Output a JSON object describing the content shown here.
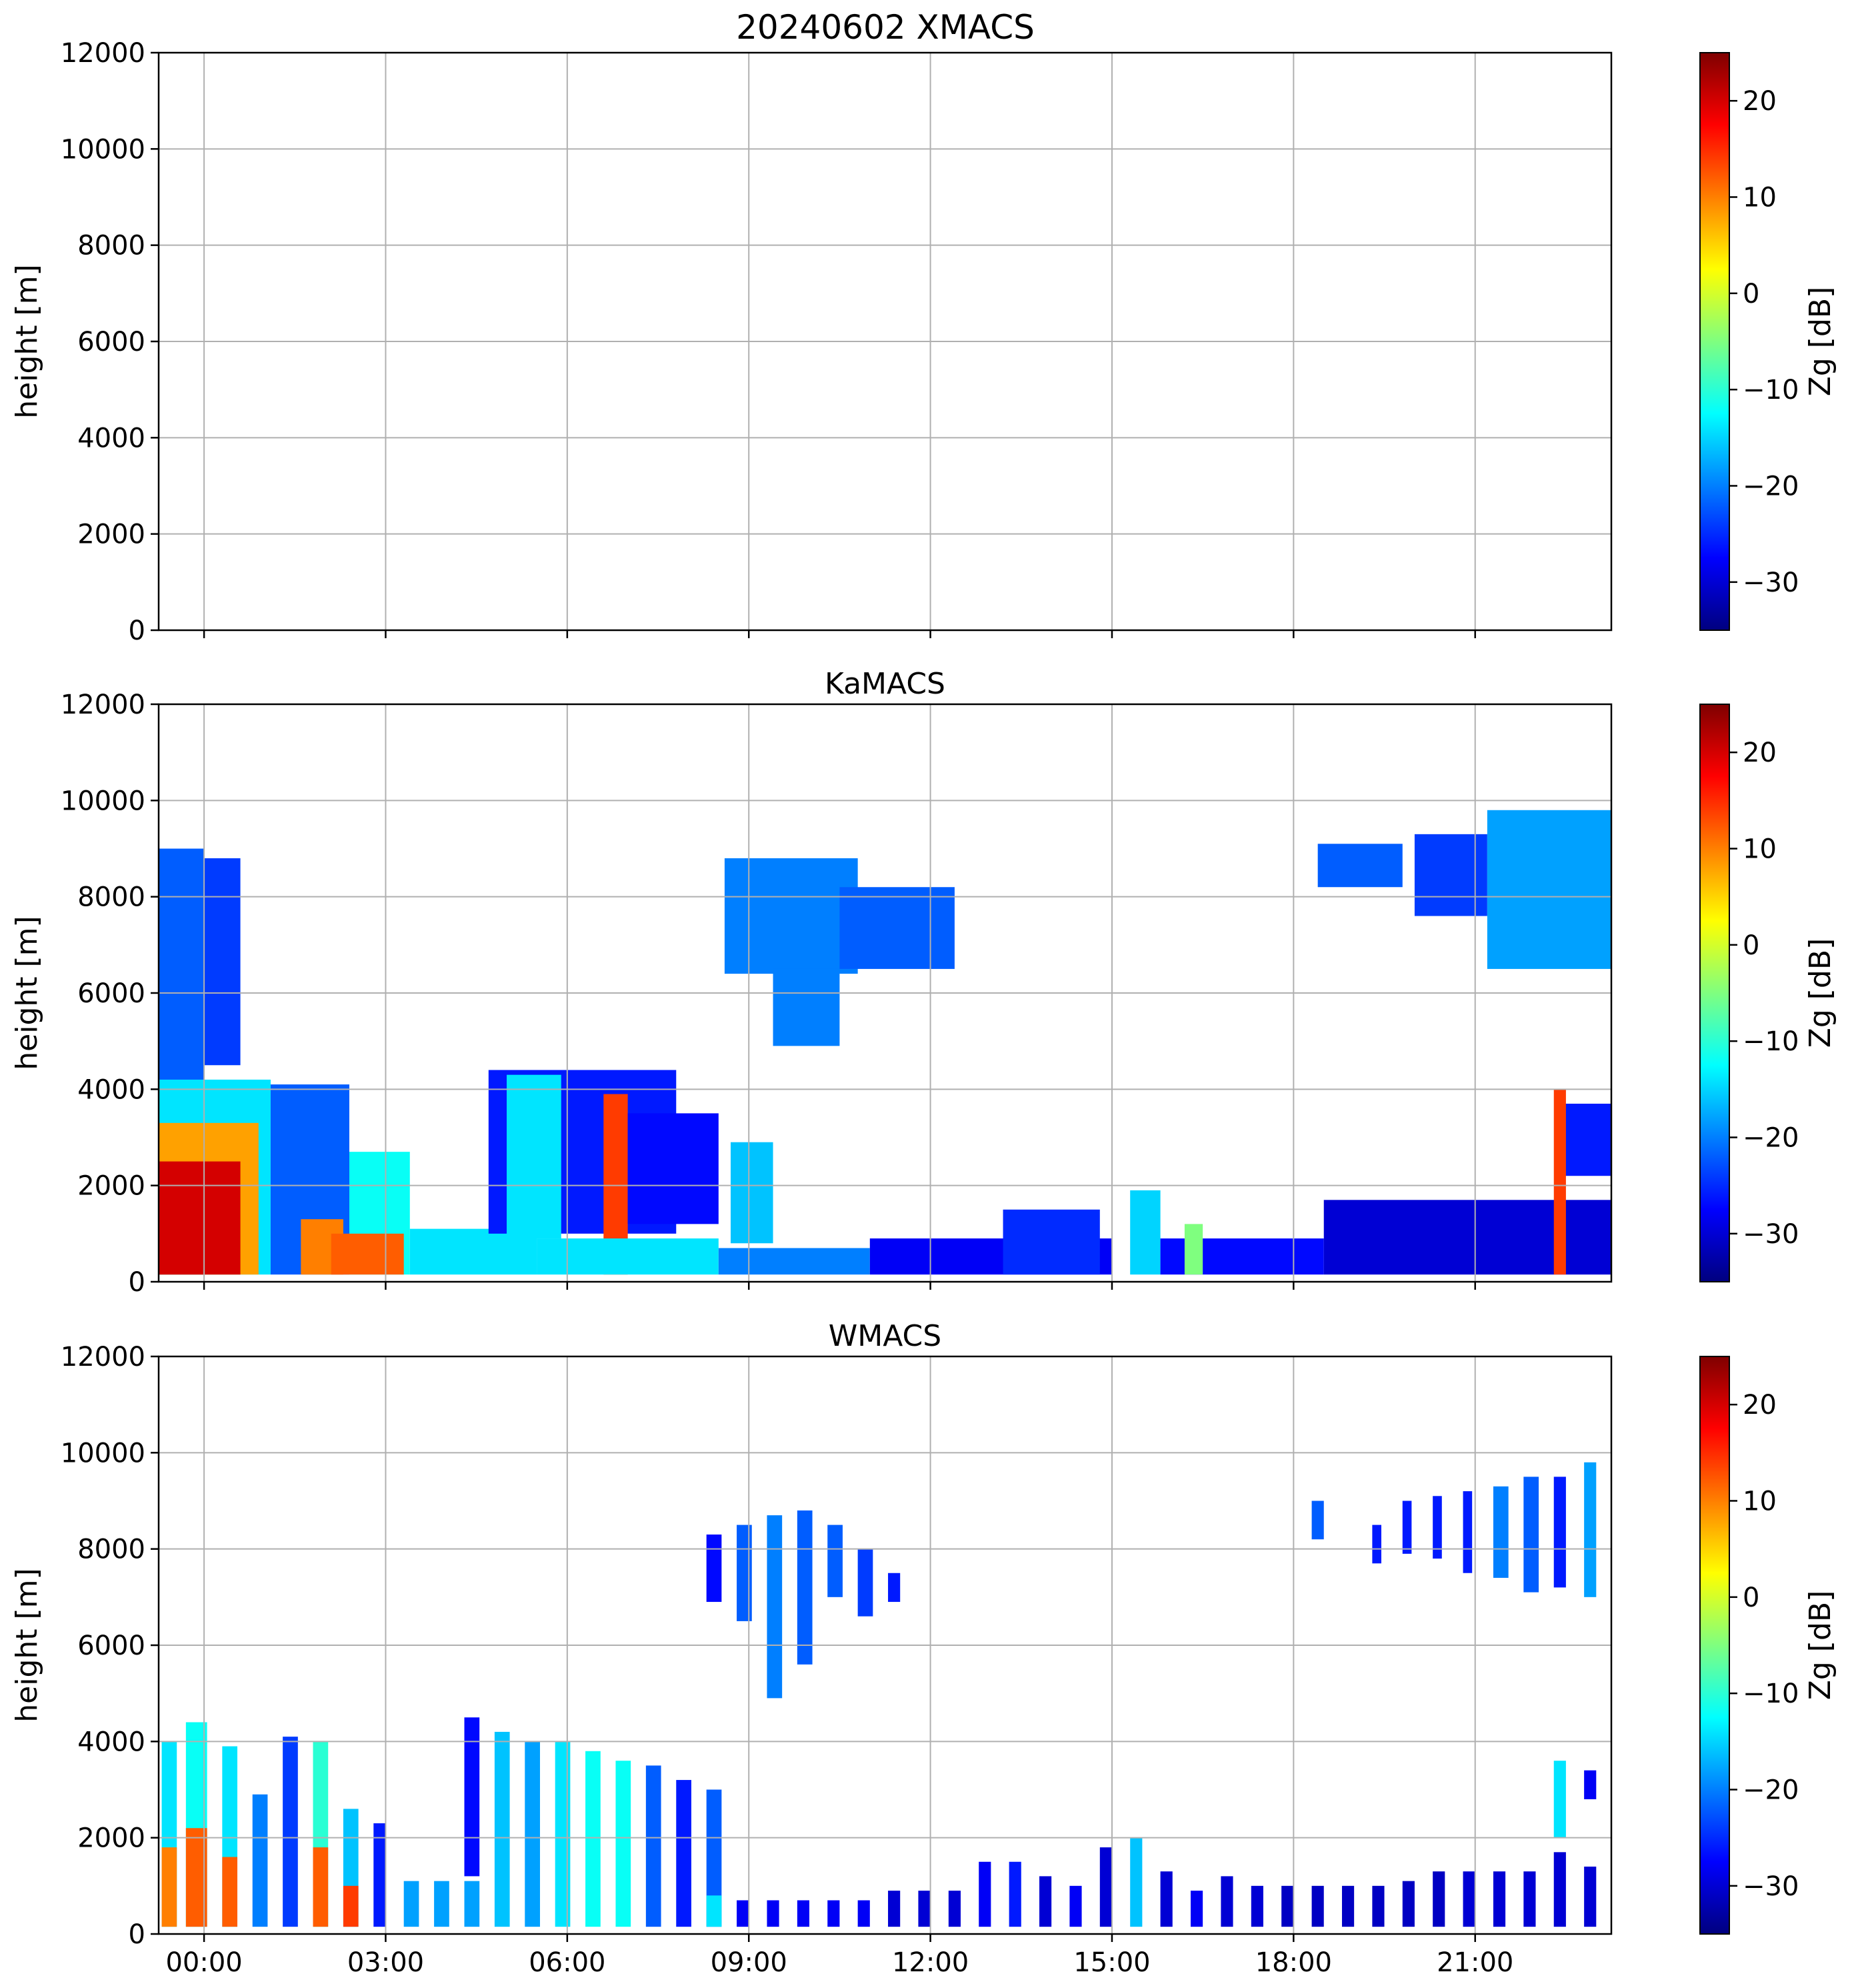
{
  "figure": {
    "title": "20240602 XMACS"
  },
  "colormap": {
    "name": "jet",
    "stops": [
      "#00007f",
      "#0000ff",
      "#007fff",
      "#00ffff",
      "#7fff7f",
      "#ffff00",
      "#ff7f00",
      "#ff0000",
      "#7f0000"
    ]
  },
  "chart_data": [
    {
      "type": "heatmap",
      "title": "",
      "instrument": "XMACS",
      "xlabel": "",
      "ylabel": "height [m]",
      "xlim": [
        -0.75,
        23.25
      ],
      "ylim": [
        0,
        12000
      ],
      "xtick_values": [
        0,
        3,
        6,
        9,
        12,
        15,
        18,
        21
      ],
      "xtick_labels": [
        "00:00",
        "03:00",
        "06:00",
        "09:00",
        "12:00",
        "15:00",
        "18:00",
        "21:00"
      ],
      "ytick_values": [
        0,
        2000,
        4000,
        6000,
        8000,
        10000,
        12000
      ],
      "ytick_labels": [
        "0",
        "2000",
        "4000",
        "6000",
        "8000",
        "10000",
        "12000"
      ],
      "show_xtick_labels": false,
      "grid": true,
      "colorbar": {
        "label": "Zg [dB]",
        "range": [
          -35,
          25
        ],
        "ticks": [
          -30,
          -20,
          -10,
          0,
          10,
          20
        ],
        "tick_labels": [
          "−30",
          "−20",
          "−10",
          "0",
          "10",
          "20"
        ]
      },
      "regions": []
    },
    {
      "type": "heatmap",
      "title": "KaMACS",
      "instrument": "KaMACS",
      "xlabel": "",
      "ylabel": "height [m]",
      "xlim": [
        -0.75,
        23.25
      ],
      "ylim": [
        0,
        12000
      ],
      "xtick_values": [
        0,
        3,
        6,
        9,
        12,
        15,
        18,
        21
      ],
      "xtick_labels": [
        "00:00",
        "03:00",
        "06:00",
        "09:00",
        "12:00",
        "15:00",
        "18:00",
        "21:00"
      ],
      "ytick_values": [
        0,
        2000,
        4000,
        6000,
        8000,
        10000,
        12000
      ],
      "ytick_labels": [
        "0",
        "2000",
        "4000",
        "6000",
        "8000",
        "10000",
        "12000"
      ],
      "show_xtick_labels": false,
      "grid": true,
      "colorbar": {
        "label": "Zg [dB]",
        "range": [
          -35,
          25
        ],
        "ticks": [
          -30,
          -20,
          -10,
          0,
          10,
          20
        ],
        "tick_labels": [
          "−30",
          "−20",
          "−10",
          "0",
          "10",
          "20"
        ]
      },
      "regions": [
        {
          "t0": -0.75,
          "t1": 0.0,
          "h0": 150,
          "h1": 9000,
          "z": -22
        },
        {
          "t0": 0.0,
          "t1": 0.6,
          "h0": 4500,
          "h1": 8800,
          "z": -24
        },
        {
          "t0": -0.75,
          "t1": 1.1,
          "h0": 150,
          "h1": 4200,
          "z": -14
        },
        {
          "t0": -0.75,
          "t1": 0.9,
          "h0": 150,
          "h1": 3300,
          "z": 8
        },
        {
          "t0": -0.75,
          "t1": 0.6,
          "h0": 150,
          "h1": 2500,
          "z": 20
        },
        {
          "t0": 1.1,
          "t1": 2.4,
          "h0": 150,
          "h1": 4100,
          "z": -22
        },
        {
          "t0": 1.6,
          "t1": 2.3,
          "h0": 150,
          "h1": 1300,
          "z": 10
        },
        {
          "t0": 2.4,
          "t1": 3.4,
          "h0": 150,
          "h1": 2700,
          "z": -12
        },
        {
          "t0": 2.1,
          "t1": 3.3,
          "h0": 150,
          "h1": 1000,
          "z": 12
        },
        {
          "t0": 3.4,
          "t1": 5.5,
          "h0": 150,
          "h1": 1100,
          "z": -14
        },
        {
          "t0": 4.7,
          "t1": 7.8,
          "h0": 1000,
          "h1": 4400,
          "z": -26
        },
        {
          "t0": 5.0,
          "t1": 5.9,
          "h0": 900,
          "h1": 4300,
          "z": -14
        },
        {
          "t0": 6.6,
          "t1": 7.0,
          "h0": 150,
          "h1": 3900,
          "z": 14
        },
        {
          "t0": 5.5,
          "t1": 8.5,
          "h0": 150,
          "h1": 900,
          "z": -14
        },
        {
          "t0": 7.0,
          "t1": 8.5,
          "h0": 1200,
          "h1": 3500,
          "z": -27
        },
        {
          "t0": 8.7,
          "t1": 9.4,
          "h0": 800,
          "h1": 2900,
          "z": -16
        },
        {
          "t0": 8.5,
          "t1": 11.0,
          "h0": 150,
          "h1": 700,
          "z": -20
        },
        {
          "t0": 8.6,
          "t1": 10.8,
          "h0": 6400,
          "h1": 8800,
          "z": -20
        },
        {
          "t0": 9.4,
          "t1": 10.5,
          "h0": 4900,
          "h1": 6500,
          "z": -20
        },
        {
          "t0": 10.5,
          "t1": 12.4,
          "h0": 6500,
          "h1": 8200,
          "z": -22
        },
        {
          "t0": 11.0,
          "t1": 15.0,
          "h0": 150,
          "h1": 900,
          "z": -28
        },
        {
          "t0": 13.2,
          "t1": 14.8,
          "h0": 150,
          "h1": 1500,
          "z": -25
        },
        {
          "t0": 15.3,
          "t1": 15.8,
          "h0": 150,
          "h1": 1900,
          "z": -15
        },
        {
          "t0": 15.8,
          "t1": 18.5,
          "h0": 150,
          "h1": 900,
          "z": -27
        },
        {
          "t0": 16.2,
          "t1": 16.5,
          "h0": 150,
          "h1": 1200,
          "z": -5
        },
        {
          "t0": 18.5,
          "t1": 23.25,
          "h0": 150,
          "h1": 1700,
          "z": -30
        },
        {
          "t0": 18.4,
          "t1": 19.8,
          "h0": 8200,
          "h1": 9100,
          "z": -22
        },
        {
          "t0": 20.0,
          "t1": 21.2,
          "h0": 7600,
          "h1": 9300,
          "z": -24
        },
        {
          "t0": 21.2,
          "t1": 23.25,
          "h0": 6500,
          "h1": 9800,
          "z": -18
        },
        {
          "t0": 22.4,
          "t1": 23.25,
          "h0": 2200,
          "h1": 3700,
          "z": -26
        },
        {
          "t0": 22.3,
          "t1": 22.5,
          "h0": 150,
          "h1": 4000,
          "z": 14
        }
      ]
    },
    {
      "type": "heatmap",
      "title": "WMACS",
      "instrument": "WMACS",
      "xlabel": "",
      "ylabel": "height [m]",
      "xlim": [
        -0.75,
        23.25
      ],
      "ylim": [
        0,
        12000
      ],
      "xtick_values": [
        0,
        3,
        6,
        9,
        12,
        15,
        18,
        21
      ],
      "xtick_labels": [
        "00:00",
        "03:00",
        "06:00",
        "09:00",
        "12:00",
        "15:00",
        "18:00",
        "21:00"
      ],
      "ytick_values": [
        0,
        2000,
        4000,
        6000,
        8000,
        10000,
        12000
      ],
      "ytick_labels": [
        "0",
        "2000",
        "4000",
        "6000",
        "8000",
        "10000",
        "12000"
      ],
      "show_xtick_labels": true,
      "grid": true,
      "colorbar": {
        "label": "Zg [dB]",
        "range": [
          -35,
          25
        ],
        "ticks": [
          -30,
          -20,
          -10,
          0,
          10,
          20
        ],
        "tick_labels": [
          "−30",
          "−20",
          "−10",
          "0",
          "10",
          "20"
        ]
      },
      "regions": [
        {
          "t0": -0.7,
          "t1": -0.45,
          "h0": 150,
          "h1": 4000,
          "z": -14
        },
        {
          "t0": -0.7,
          "t1": -0.45,
          "h0": 150,
          "h1": 1800,
          "z": 10
        },
        {
          "t0": -0.3,
          "t1": 0.05,
          "h0": 150,
          "h1": 4400,
          "z": -12
        },
        {
          "t0": -0.3,
          "t1": 0.05,
          "h0": 150,
          "h1": 2200,
          "z": 12
        },
        {
          "t0": 0.3,
          "t1": 0.55,
          "h0": 150,
          "h1": 3900,
          "z": -14
        },
        {
          "t0": 0.3,
          "t1": 0.55,
          "h0": 150,
          "h1": 1600,
          "z": 12
        },
        {
          "t0": 0.8,
          "t1": 1.05,
          "h0": 150,
          "h1": 2900,
          "z": -20
        },
        {
          "t0": 1.3,
          "t1": 1.55,
          "h0": 150,
          "h1": 4100,
          "z": -24
        },
        {
          "t0": 1.8,
          "t1": 2.05,
          "h0": 150,
          "h1": 4000,
          "z": -10
        },
        {
          "t0": 1.8,
          "t1": 2.05,
          "h0": 150,
          "h1": 1800,
          "z": 12
        },
        {
          "t0": 2.3,
          "t1": 2.55,
          "h0": 150,
          "h1": 2600,
          "z": -16
        },
        {
          "t0": 2.3,
          "t1": 2.55,
          "h0": 150,
          "h1": 1000,
          "z": 14
        },
        {
          "t0": 2.8,
          "t1": 3.0,
          "h0": 150,
          "h1": 2300,
          "z": -26
        },
        {
          "t0": 3.3,
          "t1": 3.55,
          "h0": 150,
          "h1": 1100,
          "z": -18
        },
        {
          "t0": 3.8,
          "t1": 4.05,
          "h0": 150,
          "h1": 1100,
          "z": -18
        },
        {
          "t0": 4.3,
          "t1": 4.55,
          "h0": 150,
          "h1": 1100,
          "z": -18
        },
        {
          "t0": 4.3,
          "t1": 4.55,
          "h0": 1200,
          "h1": 4500,
          "z": -27
        },
        {
          "t0": 4.8,
          "t1": 5.05,
          "h0": 150,
          "h1": 4200,
          "z": -16
        },
        {
          "t0": 5.3,
          "t1": 5.55,
          "h0": 150,
          "h1": 4000,
          "z": -18
        },
        {
          "t0": 5.8,
          "t1": 6.05,
          "h0": 150,
          "h1": 4000,
          "z": -14
        },
        {
          "t0": 6.3,
          "t1": 6.55,
          "h0": 150,
          "h1": 3800,
          "z": -12
        },
        {
          "t0": 6.8,
          "t1": 7.05,
          "h0": 150,
          "h1": 3600,
          "z": -12
        },
        {
          "t0": 7.3,
          "t1": 7.55,
          "h0": 150,
          "h1": 3500,
          "z": -22
        },
        {
          "t0": 7.8,
          "t1": 8.05,
          "h0": 150,
          "h1": 3200,
          "z": -26
        },
        {
          "t0": 8.3,
          "t1": 8.55,
          "h0": 150,
          "h1": 3000,
          "z": -22
        },
        {
          "t0": 8.3,
          "t1": 8.55,
          "h0": 150,
          "h1": 800,
          "z": -14
        },
        {
          "t0": 8.8,
          "t1": 9.0,
          "h0": 150,
          "h1": 700,
          "z": -28
        },
        {
          "t0": 9.3,
          "t1": 9.5,
          "h0": 150,
          "h1": 700,
          "z": -28
        },
        {
          "t0": 9.8,
          "t1": 10.0,
          "h0": 150,
          "h1": 700,
          "z": -28
        },
        {
          "t0": 10.3,
          "t1": 10.5,
          "h0": 150,
          "h1": 700,
          "z": -28
        },
        {
          "t0": 8.3,
          "t1": 8.55,
          "h0": 6900,
          "h1": 8300,
          "z": -27
        },
        {
          "t0": 8.8,
          "t1": 9.05,
          "h0": 6500,
          "h1": 8500,
          "z": -22
        },
        {
          "t0": 9.3,
          "t1": 9.55,
          "h0": 4900,
          "h1": 8700,
          "z": -20
        },
        {
          "t0": 9.8,
          "t1": 10.05,
          "h0": 5600,
          "h1": 8800,
          "z": -22
        },
        {
          "t0": 10.3,
          "t1": 10.55,
          "h0": 7000,
          "h1": 8500,
          "z": -22
        },
        {
          "t0": 10.8,
          "t1": 11.05,
          "h0": 6600,
          "h1": 8000,
          "z": -24
        },
        {
          "t0": 11.3,
          "t1": 11.5,
          "h0": 6900,
          "h1": 7500,
          "z": -26
        },
        {
          "t0": 10.8,
          "t1": 11.0,
          "h0": 150,
          "h1": 700,
          "z": -28
        },
        {
          "t0": 11.3,
          "t1": 11.5,
          "h0": 150,
          "h1": 900,
          "z": -30
        },
        {
          "t0": 11.8,
          "t1": 12.0,
          "h0": 150,
          "h1": 900,
          "z": -30
        },
        {
          "t0": 12.3,
          "t1": 12.5,
          "h0": 150,
          "h1": 900,
          "z": -30
        },
        {
          "t0": 12.8,
          "t1": 13.0,
          "h0": 150,
          "h1": 1500,
          "z": -28
        },
        {
          "t0": 13.3,
          "t1": 13.5,
          "h0": 150,
          "h1": 1500,
          "z": -26
        },
        {
          "t0": 13.8,
          "t1": 14.0,
          "h0": 150,
          "h1": 1200,
          "z": -30
        },
        {
          "t0": 14.3,
          "t1": 14.5,
          "h0": 150,
          "h1": 1000,
          "z": -28
        },
        {
          "t0": 14.8,
          "t1": 15.0,
          "h0": 150,
          "h1": 1800,
          "z": -30
        },
        {
          "t0": 15.3,
          "t1": 15.5,
          "h0": 150,
          "h1": 2000,
          "z": -16
        },
        {
          "t0": 15.8,
          "t1": 16.0,
          "h0": 150,
          "h1": 1300,
          "z": -30
        },
        {
          "t0": 16.3,
          "t1": 16.5,
          "h0": 150,
          "h1": 900,
          "z": -28
        },
        {
          "t0": 16.8,
          "t1": 17.0,
          "h0": 150,
          "h1": 1200,
          "z": -30
        },
        {
          "t0": 17.3,
          "t1": 17.5,
          "h0": 150,
          "h1": 1000,
          "z": -30
        },
        {
          "t0": 17.8,
          "t1": 18.0,
          "h0": 150,
          "h1": 1000,
          "z": -31
        },
        {
          "t0": 18.3,
          "t1": 18.5,
          "h0": 150,
          "h1": 1000,
          "z": -31
        },
        {
          "t0": 18.8,
          "t1": 19.0,
          "h0": 150,
          "h1": 1000,
          "z": -31
        },
        {
          "t0": 19.3,
          "t1": 19.5,
          "h0": 150,
          "h1": 1000,
          "z": -31
        },
        {
          "t0": 19.8,
          "t1": 20.0,
          "h0": 150,
          "h1": 1100,
          "z": -31
        },
        {
          "t0": 20.3,
          "t1": 20.5,
          "h0": 150,
          "h1": 1300,
          "z": -31
        },
        {
          "t0": 20.8,
          "t1": 21.0,
          "h0": 150,
          "h1": 1300,
          "z": -30
        },
        {
          "t0": 21.3,
          "t1": 21.5,
          "h0": 150,
          "h1": 1300,
          "z": -30
        },
        {
          "t0": 21.8,
          "t1": 22.0,
          "h0": 150,
          "h1": 1300,
          "z": -30
        },
        {
          "t0": 22.3,
          "t1": 22.5,
          "h0": 150,
          "h1": 1700,
          "z": -30
        },
        {
          "t0": 22.8,
          "t1": 23.0,
          "h0": 150,
          "h1": 1400,
          "z": -30
        },
        {
          "t0": 18.3,
          "t1": 18.5,
          "h0": 8200,
          "h1": 9000,
          "z": -22
        },
        {
          "t0": 19.3,
          "t1": 19.45,
          "h0": 7700,
          "h1": 8500,
          "z": -26
        },
        {
          "t0": 19.8,
          "t1": 19.95,
          "h0": 7900,
          "h1": 9000,
          "z": -26
        },
        {
          "t0": 20.3,
          "t1": 20.45,
          "h0": 7800,
          "h1": 9100,
          "z": -26
        },
        {
          "t0": 20.8,
          "t1": 20.95,
          "h0": 7500,
          "h1": 9200,
          "z": -26
        },
        {
          "t0": 21.3,
          "t1": 21.55,
          "h0": 7400,
          "h1": 9300,
          "z": -20
        },
        {
          "t0": 21.8,
          "t1": 22.05,
          "h0": 7100,
          "h1": 9500,
          "z": -22
        },
        {
          "t0": 22.3,
          "t1": 22.5,
          "h0": 7200,
          "h1": 9500,
          "z": -26
        },
        {
          "t0": 22.8,
          "t1": 23.0,
          "h0": 7000,
          "h1": 9800,
          "z": -18
        },
        {
          "t0": 22.3,
          "t1": 22.5,
          "h0": 2000,
          "h1": 3600,
          "z": -14
        },
        {
          "t0": 22.8,
          "t1": 23.0,
          "h0": 2800,
          "h1": 3400,
          "z": -28
        }
      ]
    }
  ]
}
